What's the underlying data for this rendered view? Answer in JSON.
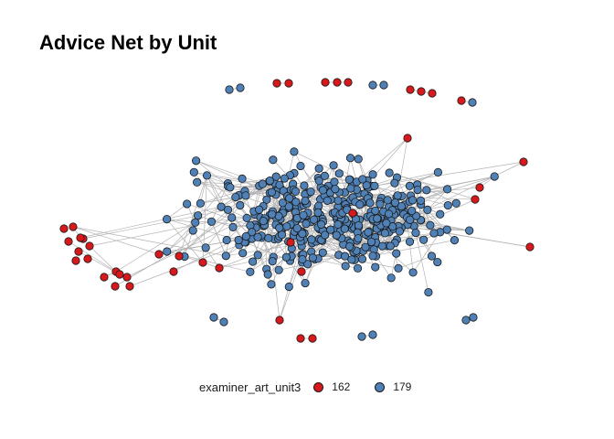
{
  "plot": {
    "title": "Advice Net by Unit"
  },
  "legend": {
    "title": "examiner_art_unit3",
    "items": [
      {
        "label": "162",
        "color": "#d7191c"
      },
      {
        "label": "179",
        "color": "#4f81b6"
      }
    ]
  },
  "colors": {
    "edge": "#b3b3b3",
    "node_outline": "#1a1a1a"
  }
}
